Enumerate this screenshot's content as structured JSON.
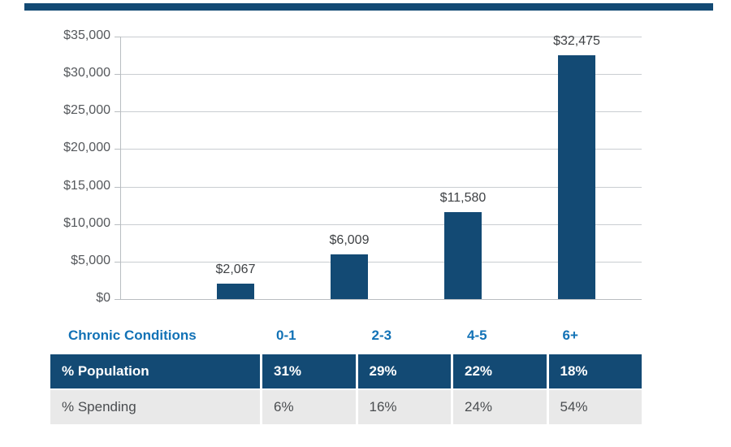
{
  "colors": {
    "navy": "#134a74",
    "blue": "#1272b6",
    "grid": "#c9cdd1",
    "axis_text": "#55585c",
    "bar_label_text": "#3f4245",
    "spending_row_bg": "#e9e9e9"
  },
  "chart_data": {
    "type": "bar",
    "title": "",
    "xlabel": "",
    "ylabel": "",
    "categories": [
      "0-1",
      "2-3",
      "4-5",
      "6+"
    ],
    "values": [
      2067,
      6009,
      11580,
      32475
    ],
    "value_labels": [
      "$2,067",
      "$6,009",
      "$11,580",
      "$32,475"
    ],
    "ylim": [
      0,
      35000
    ],
    "ytick_step": 5000,
    "ytick_labels": [
      "$0",
      "$5,000",
      "$10,000",
      "$15,000",
      "$20,000",
      "$25,000",
      "$30,000",
      "$35,000"
    ],
    "grid": true,
    "legend": "none",
    "bar_color": "#134a74"
  },
  "table": {
    "header": {
      "label": "Chronic Conditions",
      "columns": [
        "0-1",
        "2-3",
        "4-5",
        "6+"
      ]
    },
    "rows": [
      {
        "label": "% Population",
        "values": [
          "31%",
          "29%",
          "22%",
          "18%"
        ],
        "style": "navy"
      },
      {
        "label": "% Spending",
        "values": [
          "6%",
          "16%",
          "24%",
          "54%"
        ],
        "style": "gray"
      }
    ]
  }
}
